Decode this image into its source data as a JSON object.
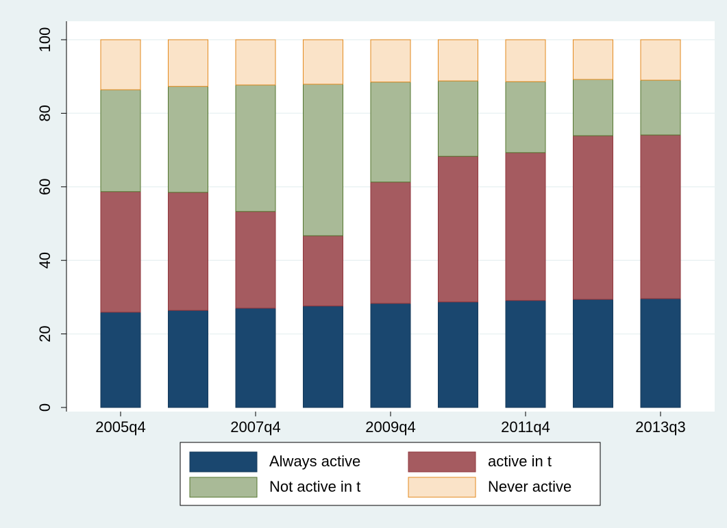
{
  "chart_data": {
    "type": "stacked_bar",
    "categories": [
      "2005q4",
      null,
      "2007q4",
      null,
      "2009q4",
      null,
      "2011q4",
      null,
      "2013q3"
    ],
    "series": [
      {
        "name": "Always active",
        "color": "#1a476f",
        "edgecolor": "#16395a",
        "values": [
          25.9,
          26.4,
          27.0,
          27.6,
          28.3,
          28.7,
          29.1,
          29.4,
          29.6
        ]
      },
      {
        "name": "active in t",
        "color": "#a55b60",
        "edgecolor": "#90353b",
        "values": [
          32.8,
          32.1,
          26.3,
          19.1,
          33.0,
          39.6,
          40.2,
          44.5,
          44.5
        ]
      },
      {
        "name": "Not active in t",
        "color": "#a9ba97",
        "edgecolor": "#55752f",
        "values": [
          27.7,
          28.8,
          34.4,
          41.2,
          27.2,
          20.5,
          19.3,
          15.3,
          14.9
        ]
      },
      {
        "name": "Never active",
        "color": "#fae3c8",
        "edgecolor": "#e38a1e",
        "values": [
          13.6,
          12.7,
          12.3,
          12.1,
          11.5,
          11.2,
          11.4,
          10.8,
          11.0
        ]
      }
    ],
    "ylim": [
      0,
      100
    ],
    "yticks": [
      0,
      20,
      40,
      60,
      80,
      100
    ],
    "grid": true,
    "legend": "bottom"
  }
}
